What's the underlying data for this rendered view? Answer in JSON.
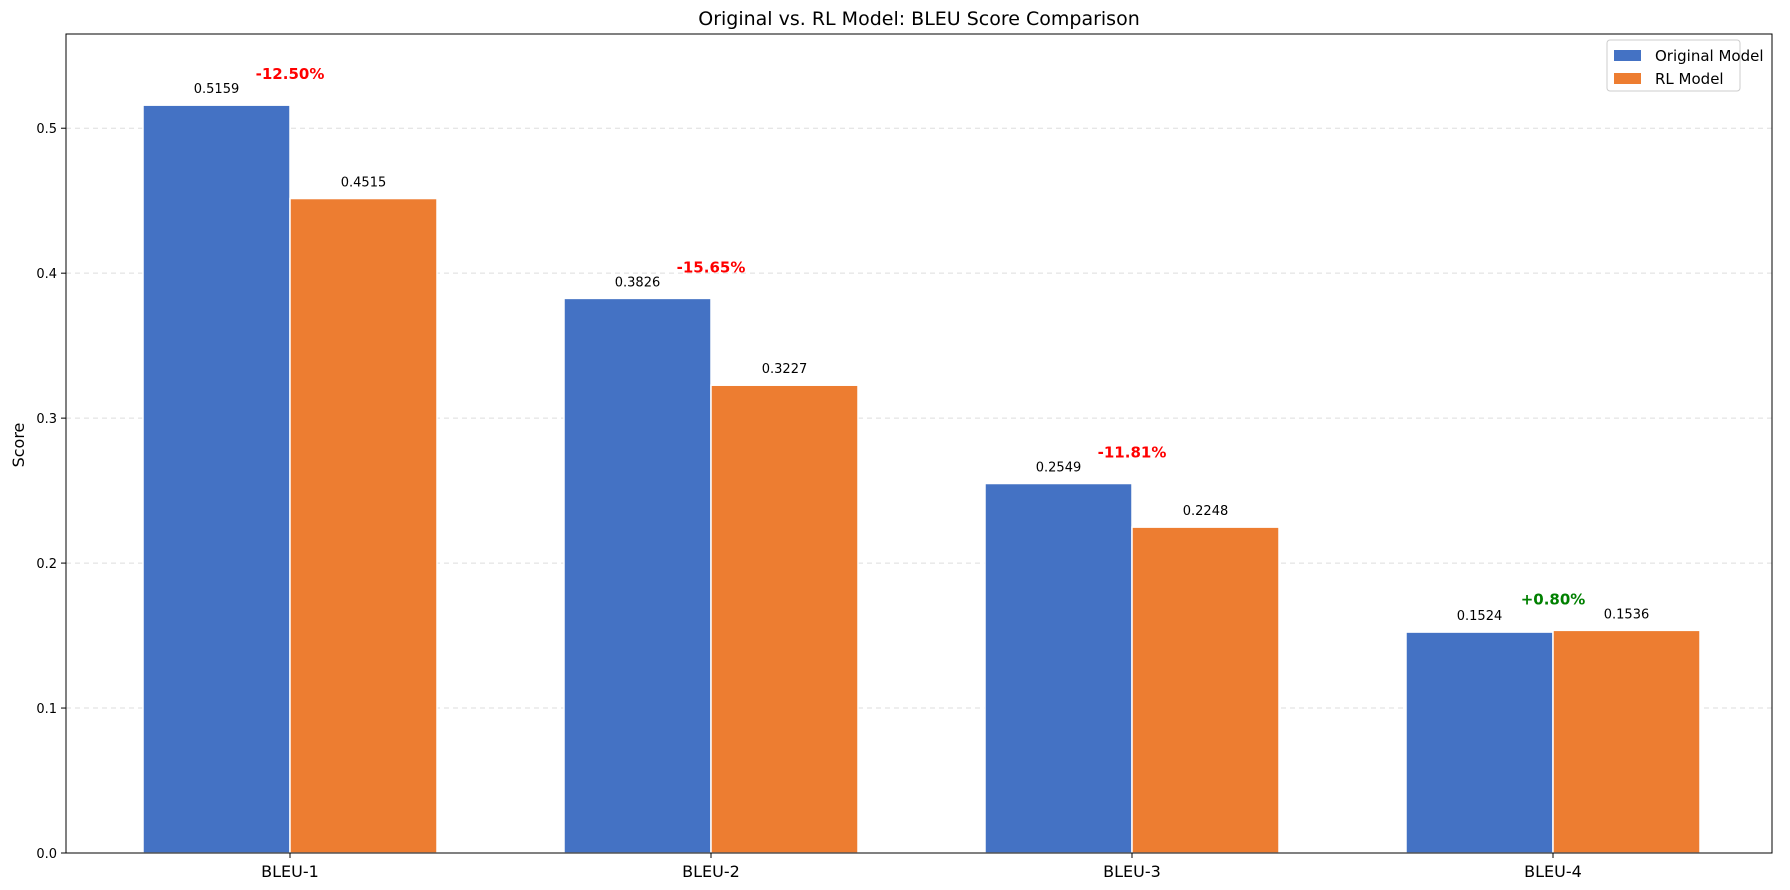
{
  "chart_data": {
    "type": "bar",
    "title": "Original vs. RL Model: BLEU Score Comparison",
    "xlabel": "",
    "ylabel": "Score",
    "ylim": [
      0,
      0.565
    ],
    "yticks": [
      "0.0",
      "0.1",
      "0.2",
      "0.3",
      "0.4",
      "0.5"
    ],
    "grid": "horizontal dashed",
    "legend_position": "top-right",
    "categories": [
      "BLEU-1",
      "BLEU-2",
      "BLEU-3",
      "BLEU-4"
    ],
    "series": [
      {
        "name": "Original Model",
        "color": "#4472C4",
        "values": [
          0.5159,
          0.3826,
          0.2549,
          0.1524
        ],
        "labels": [
          "0.5159",
          "0.3826",
          "0.2549",
          "0.1524"
        ]
      },
      {
        "name": "RL Model",
        "color": "#ED7D31",
        "values": [
          0.4515,
          0.3227,
          0.2248,
          0.1536
        ],
        "labels": [
          "0.4515",
          "0.3227",
          "0.2248",
          "0.1536"
        ]
      }
    ],
    "annotations": [
      {
        "text": "-12.50%",
        "color": "#FF0000"
      },
      {
        "text": "-15.65%",
        "color": "#FF0000"
      },
      {
        "text": "-11.81%",
        "color": "#FF0000"
      },
      {
        "text": "+0.80%",
        "color": "#008000"
      }
    ]
  }
}
